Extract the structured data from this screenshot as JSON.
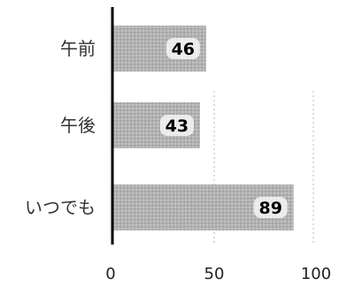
{
  "chart_data": {
    "type": "bar",
    "orientation": "horizontal",
    "categories": [
      "午前",
      "午後",
      "いつでも"
    ],
    "values": [
      46,
      43,
      89
    ],
    "xlim": [
      0,
      100
    ],
    "xticks": [
      0,
      50,
      100
    ],
    "title": "",
    "xlabel": "",
    "ylabel": "",
    "grid": true,
    "legend": "none",
    "colors": {
      "bar": "#b3b3b3",
      "axis": "#000000",
      "grid": "#b8b8b8"
    }
  }
}
